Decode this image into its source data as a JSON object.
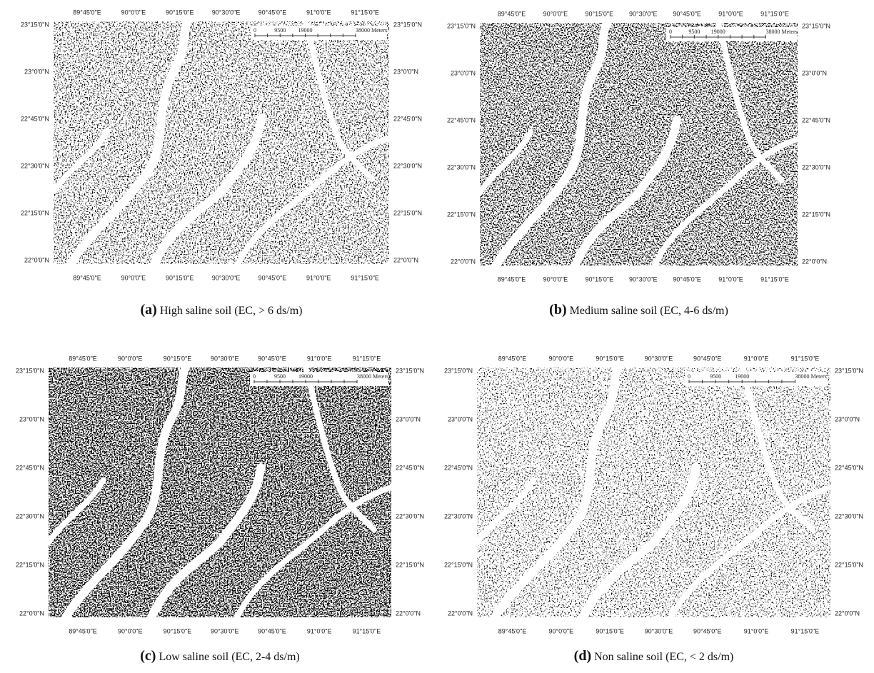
{
  "lon_labels": [
    "89°45'0\"E",
    "90°0'0\"E",
    "90°15'0\"E",
    "90°30'0\"E",
    "90°45'0\"E",
    "91°0'0\"E",
    "91°15'0\"E"
  ],
  "lat_labels": [
    "23°15'0\"N",
    "23°0'0\"N",
    "22°45'0\"N",
    "22°30'0\"N",
    "22°15'0\"N",
    "22°0'0\"N"
  ],
  "scale_labels": [
    "0",
    "9500",
    "19000",
    "38000 Meters"
  ],
  "panels": [
    {
      "label": "(a)",
      "caption": "High saline soil (EC, > 6 ds/m)"
    },
    {
      "label": "(b)",
      "caption": "Medium saline soil (EC, 4-6 ds/m)"
    },
    {
      "label": "(c)",
      "caption": "Low saline soil (EC, 2-4 ds/m)"
    },
    {
      "label": "(d)",
      "caption": "Non saline soil (EC, < 2 ds/m)"
    }
  ]
}
